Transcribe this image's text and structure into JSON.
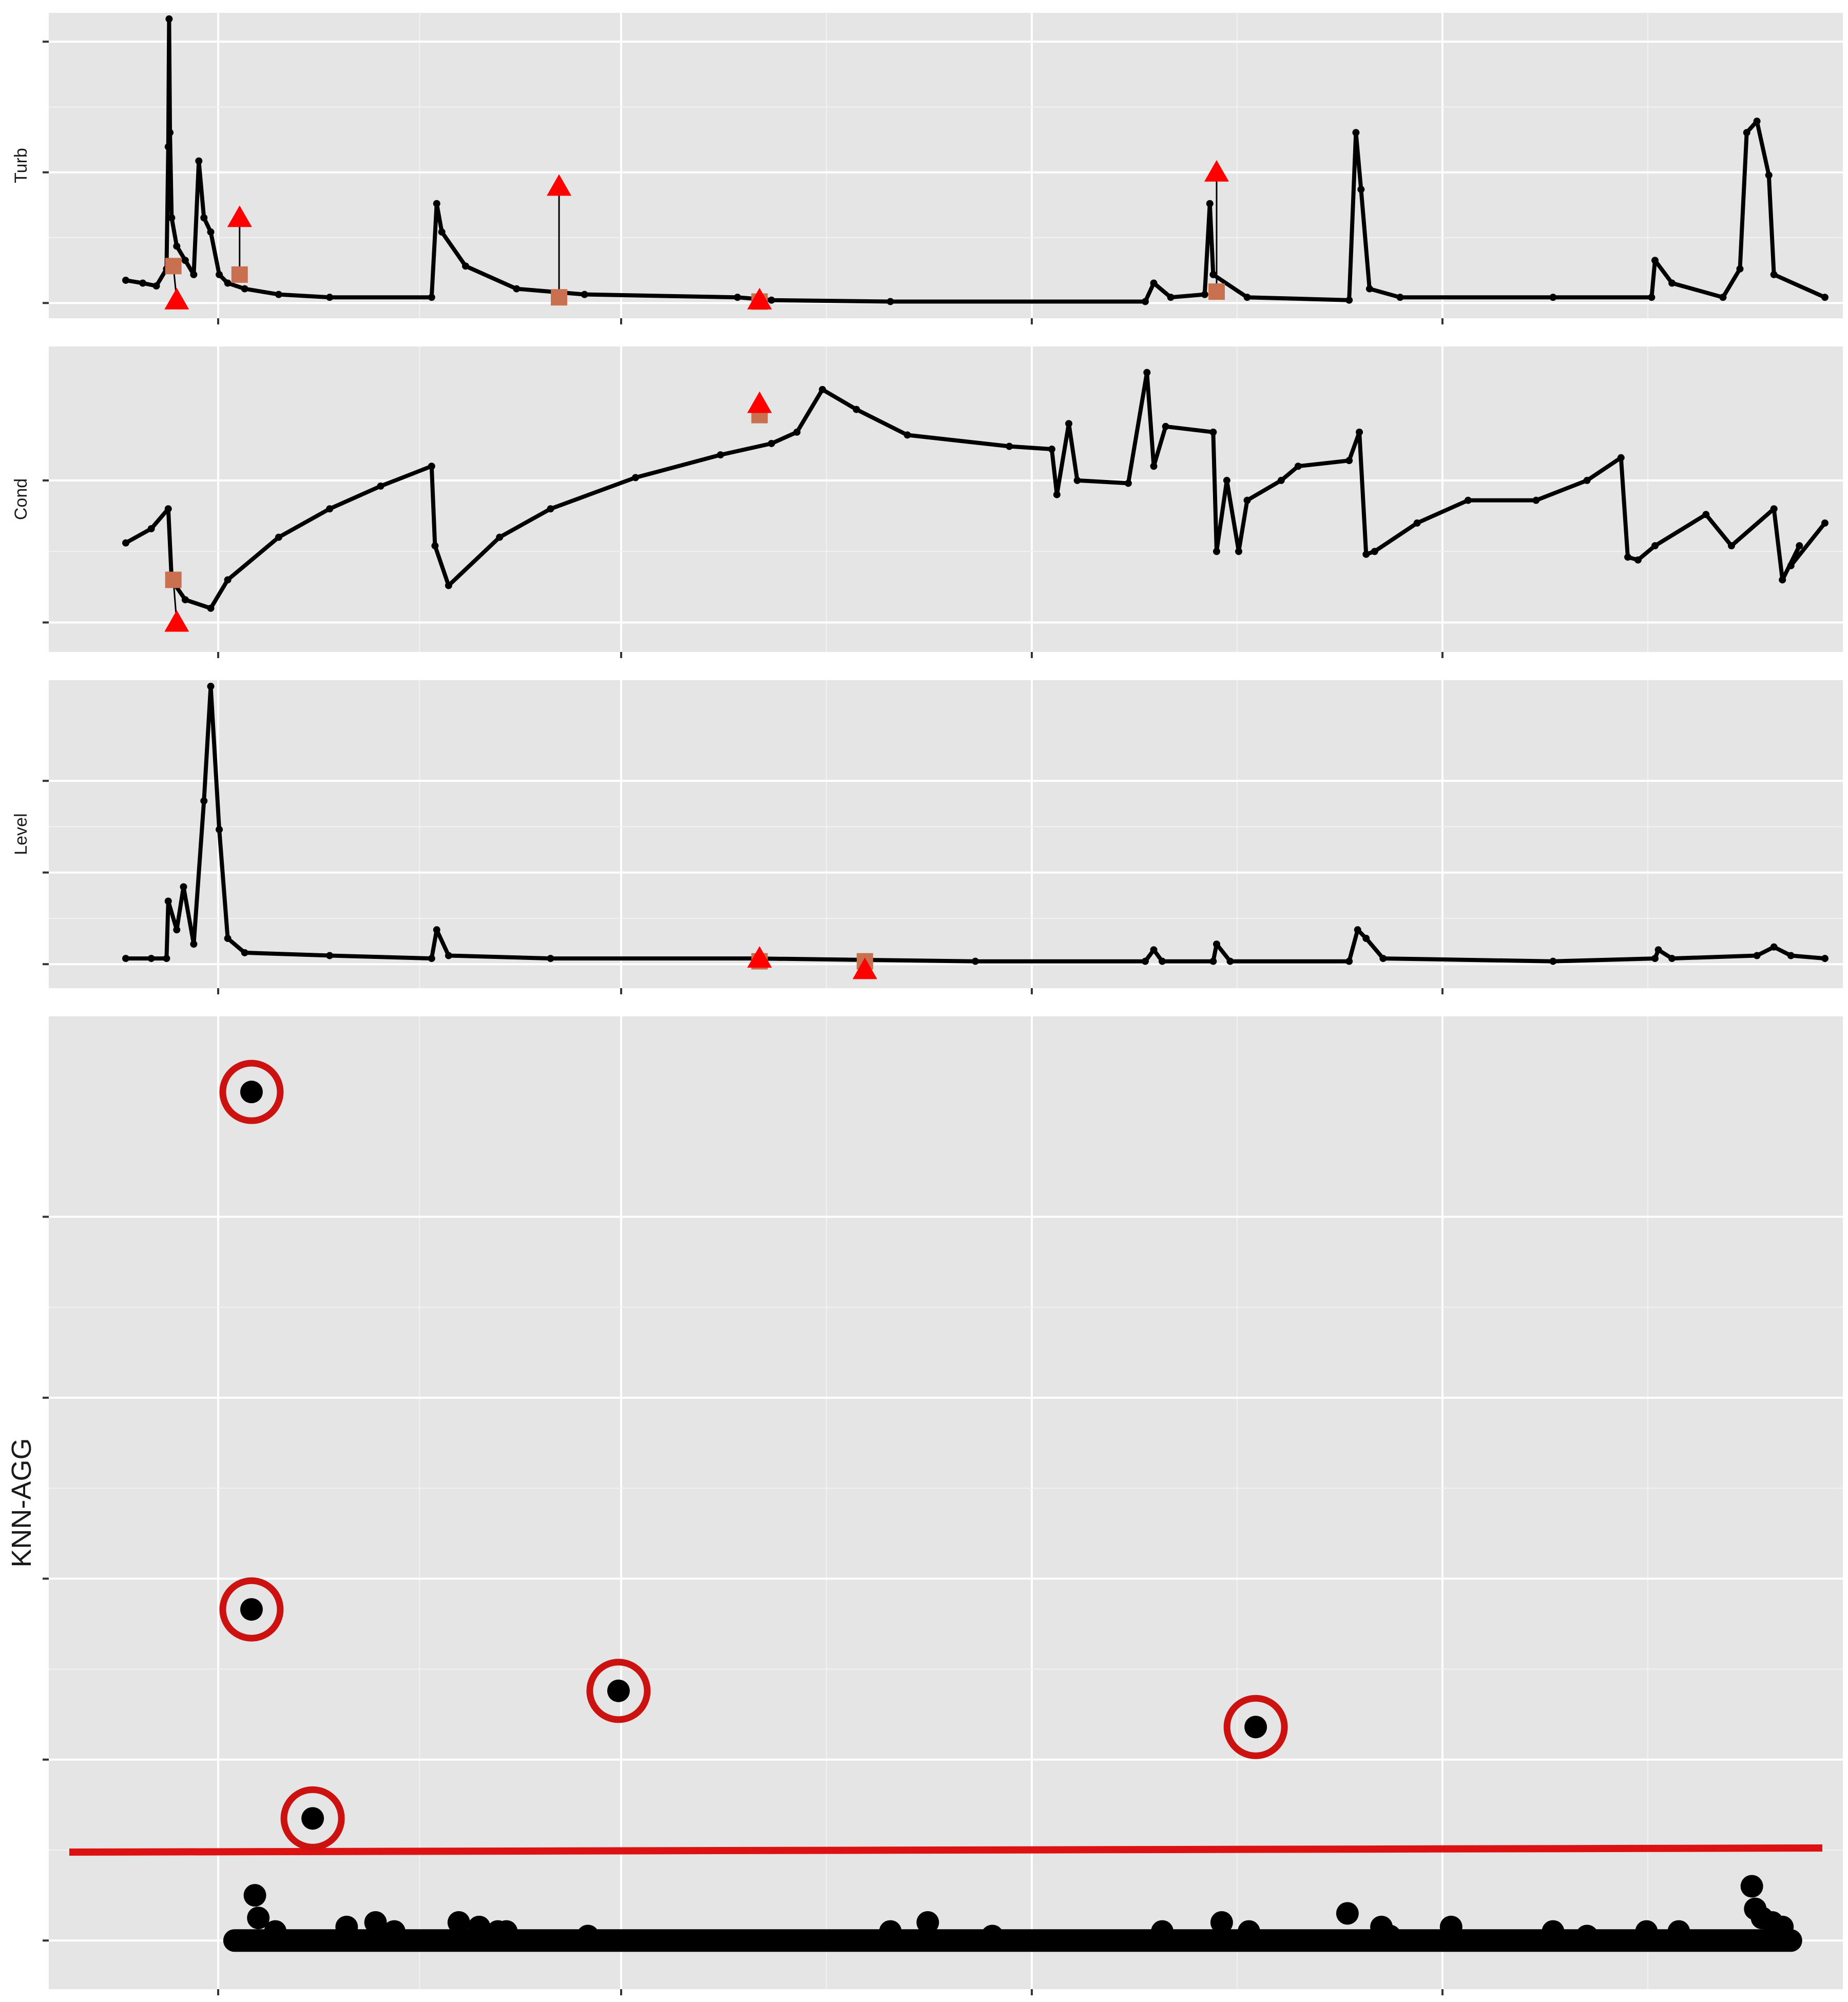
{
  "colors": {
    "panel_bg": "#e5e5e5",
    "grid_major": "#ffffff",
    "grid_minor": "#f2f2f2",
    "series": "#000000",
    "marker_red": "#ff0000",
    "marker_square": "#c87050",
    "threshold": "#dd1111",
    "circle": "#cc1111",
    "tick": "#333333"
  },
  "chart_data": [
    {
      "type": "line",
      "ylabel": "Turb",
      "xlim": [
        0,
        1
      ],
      "ylim": [
        0,
        1
      ],
      "x_major_ticks": [
        0.05,
        0.3,
        0.55,
        0.8
      ],
      "y_major_ticks": [
        0.0,
        0.46,
        0.92
      ],
      "series": [
        {
          "values": [
            [
              0.0,
              0.08
            ],
            [
              0.01,
              0.07
            ],
            [
              0.018,
              0.06
            ],
            [
              0.024,
              0.12
            ],
            [
              0.025,
              0.55
            ],
            [
              0.0255,
              1.0
            ],
            [
              0.026,
              0.6
            ],
            [
              0.027,
              0.3
            ],
            [
              0.03,
              0.2
            ],
            [
              0.035,
              0.15
            ],
            [
              0.04,
              0.1
            ],
            [
              0.043,
              0.5
            ],
            [
              0.046,
              0.3
            ],
            [
              0.05,
              0.25
            ],
            [
              0.055,
              0.1
            ],
            [
              0.06,
              0.07
            ],
            [
              0.07,
              0.05
            ],
            [
              0.09,
              0.03
            ],
            [
              0.12,
              0.02
            ],
            [
              0.18,
              0.02
            ],
            [
              0.183,
              0.35
            ],
            [
              0.186,
              0.25
            ],
            [
              0.2,
              0.13
            ],
            [
              0.23,
              0.05
            ],
            [
              0.27,
              0.03
            ],
            [
              0.36,
              0.02
            ],
            [
              0.38,
              0.01
            ],
            [
              0.45,
              0.005
            ],
            [
              0.6,
              0.005
            ],
            [
              0.605,
              0.07
            ],
            [
              0.615,
              0.02
            ],
            [
              0.635,
              0.03
            ],
            [
              0.638,
              0.35
            ],
            [
              0.64,
              0.1
            ],
            [
              0.66,
              0.02
            ],
            [
              0.72,
              0.01
            ],
            [
              0.724,
              0.6
            ],
            [
              0.727,
              0.4
            ],
            [
              0.732,
              0.05
            ],
            [
              0.75,
              0.02
            ],
            [
              0.84,
              0.02
            ],
            [
              0.898,
              0.02
            ],
            [
              0.9,
              0.15
            ],
            [
              0.91,
              0.07
            ],
            [
              0.94,
              0.02
            ],
            [
              0.94,
              0.02
            ],
            [
              0.95,
              0.12
            ],
            [
              0.954,
              0.6
            ],
            [
              0.96,
              0.64
            ],
            [
              0.967,
              0.45
            ],
            [
              0.97,
              0.1
            ],
            [
              1.0,
              0.02
            ]
          ]
        }
      ],
      "triangles": [
        [
          0.03,
          0.01
        ],
        [
          0.067,
          0.3
        ],
        [
          0.255,
          0.41
        ],
        [
          0.373,
          0.01
        ],
        [
          0.642,
          0.46
        ]
      ],
      "squares": [
        [
          0.028,
          0.13
        ],
        [
          0.067,
          0.1
        ],
        [
          0.255,
          0.02
        ],
        [
          0.373,
          0.005
        ],
        [
          0.642,
          0.04
        ]
      ]
    },
    {
      "type": "line",
      "ylabel": "Cond",
      "xlim": [
        0,
        1
      ],
      "ylim": [
        0,
        1
      ],
      "x_major_ticks": [
        0.05,
        0.3,
        0.55,
        0.8
      ],
      "y_major_ticks": [
        0.05,
        0.55
      ],
      "series": [
        {
          "values": [
            [
              0.0,
              0.33
            ],
            [
              0.015,
              0.38
            ],
            [
              0.025,
              0.45
            ],
            [
              0.027,
              0.2
            ],
            [
              0.035,
              0.13
            ],
            [
              0.05,
              0.1
            ],
            [
              0.06,
              0.2
            ],
            [
              0.09,
              0.35
            ],
            [
              0.12,
              0.45
            ],
            [
              0.15,
              0.53
            ],
            [
              0.18,
              0.6
            ],
            [
              0.182,
              0.32
            ],
            [
              0.19,
              0.18
            ],
            [
              0.22,
              0.35
            ],
            [
              0.25,
              0.45
            ],
            [
              0.3,
              0.56
            ],
            [
              0.35,
              0.64
            ],
            [
              0.38,
              0.68
            ],
            [
              0.395,
              0.72
            ],
            [
              0.41,
              0.87
            ],
            [
              0.43,
              0.8
            ],
            [
              0.46,
              0.71
            ],
            [
              0.52,
              0.67
            ],
            [
              0.545,
              0.66
            ],
            [
              0.548,
              0.5
            ],
            [
              0.555,
              0.75
            ],
            [
              0.56,
              0.55
            ],
            [
              0.59,
              0.54
            ],
            [
              0.601,
              0.93
            ],
            [
              0.605,
              0.6
            ],
            [
              0.612,
              0.74
            ],
            [
              0.64,
              0.72
            ],
            [
              0.642,
              0.3
            ],
            [
              0.648,
              0.55
            ],
            [
              0.655,
              0.3
            ],
            [
              0.66,
              0.48
            ],
            [
              0.68,
              0.55
            ],
            [
              0.69,
              0.6
            ],
            [
              0.72,
              0.62
            ],
            [
              0.726,
              0.72
            ],
            [
              0.73,
              0.29
            ],
            [
              0.735,
              0.3
            ],
            [
              0.76,
              0.4
            ],
            [
              0.79,
              0.48
            ],
            [
              0.83,
              0.48
            ],
            [
              0.86,
              0.55
            ],
            [
              0.88,
              0.63
            ],
            [
              0.884,
              0.28
            ],
            [
              0.89,
              0.27
            ],
            [
              0.9,
              0.32
            ],
            [
              0.93,
              0.43
            ],
            [
              0.945,
              0.32
            ],
            [
              0.97,
              0.45
            ],
            [
              0.975,
              0.2
            ],
            [
              0.985,
              0.32
            ],
            [
              0.98,
              0.25
            ],
            [
              1.0,
              0.4
            ]
          ]
        }
      ],
      "triangles": [
        [
          0.03,
          0.05
        ],
        [
          0.373,
          0.82
        ]
      ],
      "squares": [
        [
          0.028,
          0.2
        ],
        [
          0.373,
          0.78
        ]
      ]
    },
    {
      "type": "line",
      "ylabel": "Level",
      "xlim": [
        0,
        1
      ],
      "ylim": [
        0,
        1
      ],
      "x_major_ticks": [
        0.05,
        0.3,
        0.55,
        0.8
      ],
      "y_major_ticks": [
        0.03,
        0.35,
        0.67
      ],
      "series": [
        {
          "values": [
            [
              0.0,
              0.05
            ],
            [
              0.015,
              0.05
            ],
            [
              0.024,
              0.05
            ],
            [
              0.025,
              0.25
            ],
            [
              0.03,
              0.15
            ],
            [
              0.034,
              0.3
            ],
            [
              0.04,
              0.1
            ],
            [
              0.046,
              0.6
            ],
            [
              0.05,
              1.0
            ],
            [
              0.055,
              0.5
            ],
            [
              0.06,
              0.12
            ],
            [
              0.07,
              0.07
            ],
            [
              0.12,
              0.06
            ],
            [
              0.18,
              0.05
            ],
            [
              0.183,
              0.15
            ],
            [
              0.19,
              0.06
            ],
            [
              0.25,
              0.05
            ],
            [
              0.37,
              0.05
            ],
            [
              0.5,
              0.04
            ],
            [
              0.6,
              0.04
            ],
            [
              0.605,
              0.08
            ],
            [
              0.61,
              0.04
            ],
            [
              0.64,
              0.04
            ],
            [
              0.642,
              0.1
            ],
            [
              0.65,
              0.04
            ],
            [
              0.72,
              0.04
            ],
            [
              0.725,
              0.15
            ],
            [
              0.73,
              0.12
            ],
            [
              0.74,
              0.05
            ],
            [
              0.84,
              0.04
            ],
            [
              0.9,
              0.05
            ],
            [
              0.902,
              0.08
            ],
            [
              0.91,
              0.05
            ],
            [
              0.96,
              0.06
            ],
            [
              0.97,
              0.09
            ],
            [
              0.98,
              0.06
            ],
            [
              1.0,
              0.05
            ]
          ]
        }
      ],
      "triangles": [
        [
          0.373,
          0.05
        ],
        [
          0.435,
          0.01
        ]
      ],
      "squares": [
        [
          0.373,
          0.04
        ],
        [
          0.435,
          0.04
        ]
      ]
    },
    {
      "type": "scatter",
      "ylabel": "KNN-AGG",
      "xlim": [
        0,
        1
      ],
      "ylim": [
        0,
        1
      ],
      "x_major_ticks": [
        0.1,
        0.34,
        0.58,
        0.82
      ],
      "y_major_ticks": [
        0.0,
        0.2,
        0.4,
        0.6,
        0.8
      ],
      "threshold_y": 0.1,
      "circled_points": [
        [
          0.074,
          0.938
        ],
        [
          0.074,
          0.366
        ],
        [
          0.11,
          0.135
        ],
        [
          0.29,
          0.276
        ],
        [
          0.665,
          0.236
        ]
      ],
      "base_points": [
        [
          0.064,
          0.0
        ],
        [
          0.98,
          0.0
        ]
      ],
      "bump_points": [
        [
          0.076,
          0.05
        ],
        [
          0.078,
          0.025
        ],
        [
          0.088,
          0.01
        ],
        [
          0.13,
          0.015
        ],
        [
          0.147,
          0.02
        ],
        [
          0.158,
          0.01
        ],
        [
          0.196,
          0.02
        ],
        [
          0.208,
          0.015
        ],
        [
          0.219,
          0.01
        ],
        [
          0.224,
          0.01
        ],
        [
          0.272,
          0.005
        ],
        [
          0.45,
          0.01
        ],
        [
          0.472,
          0.02
        ],
        [
          0.51,
          0.005
        ],
        [
          0.61,
          0.01
        ],
        [
          0.645,
          0.02
        ],
        [
          0.661,
          0.01
        ],
        [
          0.719,
          0.03
        ],
        [
          0.739,
          0.015
        ],
        [
          0.744,
          0.005
        ],
        [
          0.78,
          0.015
        ],
        [
          0.84,
          0.01
        ],
        [
          0.86,
          0.005
        ],
        [
          0.895,
          0.01
        ],
        [
          0.914,
          0.01
        ],
        [
          0.957,
          0.06
        ],
        [
          0.959,
          0.035
        ],
        [
          0.963,
          0.025
        ],
        [
          0.969,
          0.02
        ],
        [
          0.975,
          0.015
        ]
      ]
    }
  ]
}
